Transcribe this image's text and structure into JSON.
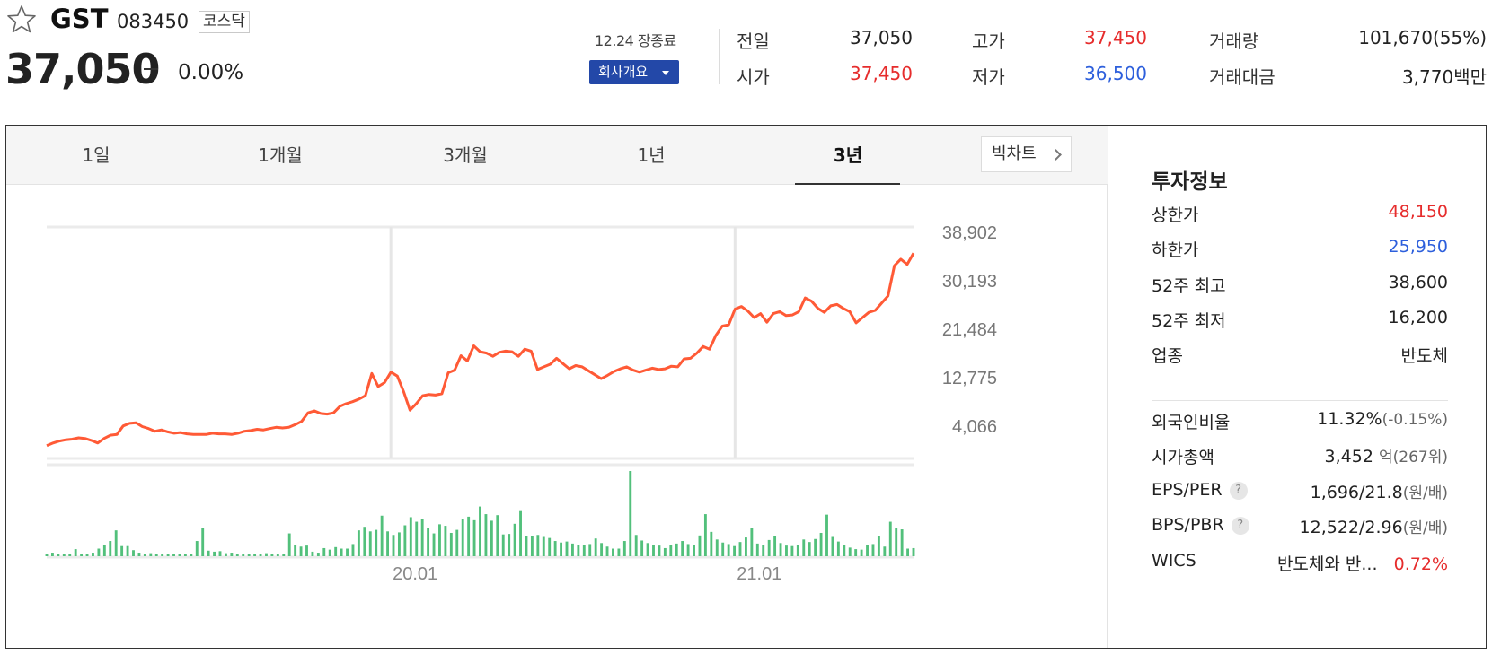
{
  "stock": {
    "name": "GST",
    "code": "083450",
    "market": "코스닥",
    "price": "37,050",
    "change_rate": "0.00%"
  },
  "session": {
    "date_status": "12.24 장종료",
    "company_button": "회사개요"
  },
  "quote": {
    "prev_close_label": "전일",
    "prev_close": "37,050",
    "open_label": "시가",
    "open": "37,450",
    "high_label": "고가",
    "high": "37,450",
    "low_label": "저가",
    "low": "36,500",
    "volume_label": "거래량",
    "volume": "101,670(55%)",
    "amount_label": "거래대금",
    "amount": "3,770백만"
  },
  "tabs": [
    "1일",
    "1개월",
    "3개월",
    "1년",
    "3년"
  ],
  "active_tab": "3년",
  "bigchart_label": "빅차트",
  "chart_data": {
    "type": "line",
    "title": "",
    "y_ticks": [
      "38,902",
      "30,193",
      "21,484",
      "12,775",
      "4,066"
    ],
    "ylim": [
      4066,
      38902
    ],
    "x_ticks": [
      {
        "index": 54,
        "label": "20.01"
      },
      {
        "index": 108,
        "label": "21.01"
      }
    ],
    "series": [
      {
        "values": [
          5600,
          6000,
          6300,
          6500,
          6600,
          6800,
          6700,
          6400,
          6000,
          6700,
          7200,
          7300,
          8600,
          9000,
          9100,
          8500,
          8200,
          7800,
          8000,
          7700,
          7500,
          7600,
          7400,
          7300,
          7300,
          7300,
          7500,
          7400,
          7400,
          7300,
          7500,
          7800,
          7900,
          8100,
          8000,
          8200,
          8400,
          8300,
          8400,
          8800,
          9300,
          10600,
          10900,
          10500,
          10400,
          10600,
          11600,
          12000,
          12300,
          12700,
          13200,
          16600,
          14600,
          15200,
          16800,
          16200,
          13800,
          11000,
          12000,
          13200,
          13400,
          13300,
          13500,
          16700,
          17100,
          19300,
          18500,
          20800,
          19900,
          19700,
          19200,
          19800,
          20000,
          19900,
          19200,
          20300,
          20000,
          17200,
          17600,
          18000,
          18900,
          18100,
          17300,
          17800,
          17600,
          17000,
          16400,
          15800,
          16300,
          16900,
          17300,
          17600,
          17100,
          16800,
          17100,
          17400,
          17200,
          17300,
          17700,
          17600,
          18800,
          18900,
          19700,
          20700,
          20300,
          22400,
          23800,
          24000,
          26400,
          26800,
          26100,
          25100,
          25700,
          24400,
          25700,
          26000,
          25400,
          25500,
          26000,
          28100,
          27600,
          26500,
          25900,
          26900,
          27100,
          26500,
          26000,
          24300,
          25100,
          25900,
          26200,
          27300,
          28400,
          33000,
          34000,
          33200,
          34900
        ],
        "color": "#ff5a36"
      }
    ],
    "volume": {
      "values": [
        0.5,
        0.7,
        0.5,
        0.5,
        0.5,
        1.4,
        0.5,
        0.5,
        0.7,
        1.5,
        2.3,
        3.0,
        5.1,
        2.0,
        2.0,
        1.2,
        0.7,
        0.5,
        0.6,
        0.5,
        0.5,
        0.4,
        0.5,
        0.5,
        0.4,
        0.4,
        3.0,
        5.5,
        1.1,
        0.9,
        1.0,
        0.6,
        0.7,
        0.5,
        0.4,
        0.4,
        0.4,
        0.5,
        0.6,
        0.5,
        0.5,
        0.4,
        4.5,
        2.3,
        1.9,
        2.1,
        0.9,
        0.7,
        1.6,
        1.3,
        1.8,
        1.5,
        1.5,
        2.4,
        5.1,
        5.8,
        4.9,
        5.2,
        8.0,
        4.9,
        4.2,
        4.7,
        6.1,
        7.7,
        6.8,
        7.3,
        5.5,
        4.5,
        6.3,
        6.0,
        4.6,
        5.2,
        7.3,
        7.8,
        7.1,
        9.8,
        8.3,
        7.0,
        8.1,
        4.3,
        4.4,
        6.4,
        8.9,
        4.0,
        3.9,
        4.2,
        3.8,
        3.6,
        3.0,
        2.7,
        2.9,
        2.5,
        2.3,
        2.2,
        2.4,
        3.5,
        2.6,
        1.9,
        1.5,
        1.5,
        3.0,
        16.8,
        4.2,
        3.1,
        2.6,
        2.3,
        2.1,
        1.6,
        2.3,
        2.5,
        3.0,
        2.4,
        2.3,
        4.1,
        8.3,
        4.8,
        3.3,
        2.7,
        2.4,
        2.0,
        2.8,
        3.7,
        5.5,
        2.5,
        2.2,
        3.2,
        4.0,
        2.6,
        2.1,
        2.0,
        2.3,
        3.3,
        2.8,
        3.4,
        4.6,
        8.2,
        3.8,
        2.9,
        2.2,
        1.7,
        1.4,
        1.3,
        2.3,
        2.4,
        3.9,
        1.9,
        6.8,
        5.6,
        5.3,
        1.5,
        1.6
      ]
    }
  },
  "invest": {
    "title": "투자정보",
    "rows": [
      {
        "label": "상한가",
        "value": "48,150"
      },
      {
        "label": "하한가",
        "value": "25,950"
      },
      {
        "label": "52주 최고",
        "value": "38,600"
      },
      {
        "label": "52주 최저",
        "value": "16,200"
      },
      {
        "label": "업종",
        "value": "반도체"
      }
    ],
    "foreign_ratio": {
      "label": "외국인비율",
      "value": "11.32%",
      "extra": "(-0.15%)"
    },
    "market_cap": {
      "label": "시가총액",
      "value": "3,452",
      "unit": "억(267위)"
    },
    "eps_per": {
      "label": "EPS/PER",
      "help": "?",
      "value": "1,696/21.8",
      "unit": "(원/배)"
    },
    "bps_pbr": {
      "label": "BPS/PBR",
      "help": "?",
      "value": "12,522/2.96",
      "unit": "(원/배)"
    },
    "wics": {
      "label": "WICS",
      "value": "반도체와 반...",
      "change": "0.72%"
    }
  },
  "colors": {
    "up": "#e62c2c",
    "down": "#2d5fdc",
    "line": "#ff5a36",
    "volume": "#52c07b",
    "accent": "#2348a8"
  }
}
